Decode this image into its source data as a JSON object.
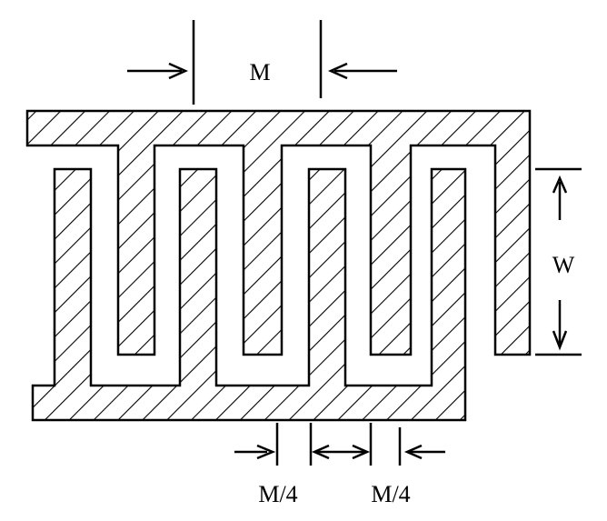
{
  "diagram": {
    "labels": {
      "m": "M",
      "w": "W",
      "gap_left": "M/4",
      "gap_right": "M/4"
    },
    "colors": {
      "ink": "#000000",
      "background": "#ffffff"
    }
  }
}
